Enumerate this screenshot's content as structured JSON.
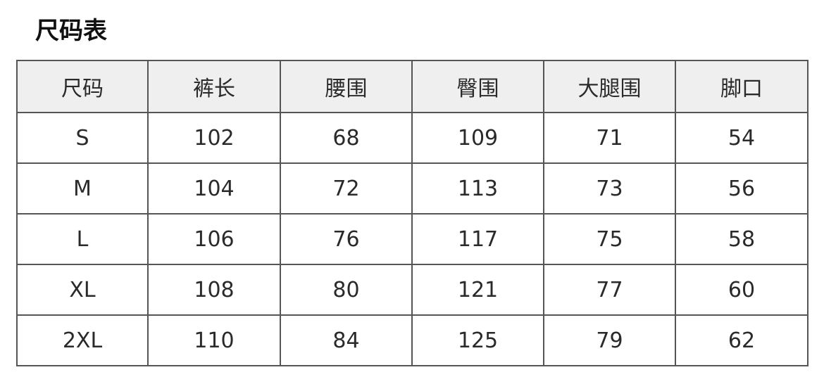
{
  "title": "尺码表",
  "headers": [
    "尺码",
    "裤长",
    "腰围",
    "臀围",
    "大腿围",
    "脚口"
  ],
  "rows": [
    [
      "S",
      "102",
      "68",
      "109",
      "71",
      "54"
    ],
    [
      "M",
      "104",
      "72",
      "113",
      "73",
      "56"
    ],
    [
      "L",
      "106",
      "76",
      "117",
      "75",
      "58"
    ],
    [
      "XL",
      "108",
      "80",
      "121",
      "77",
      "60"
    ],
    [
      "2XL",
      "110",
      "84",
      "125",
      "79",
      "62"
    ]
  ]
}
